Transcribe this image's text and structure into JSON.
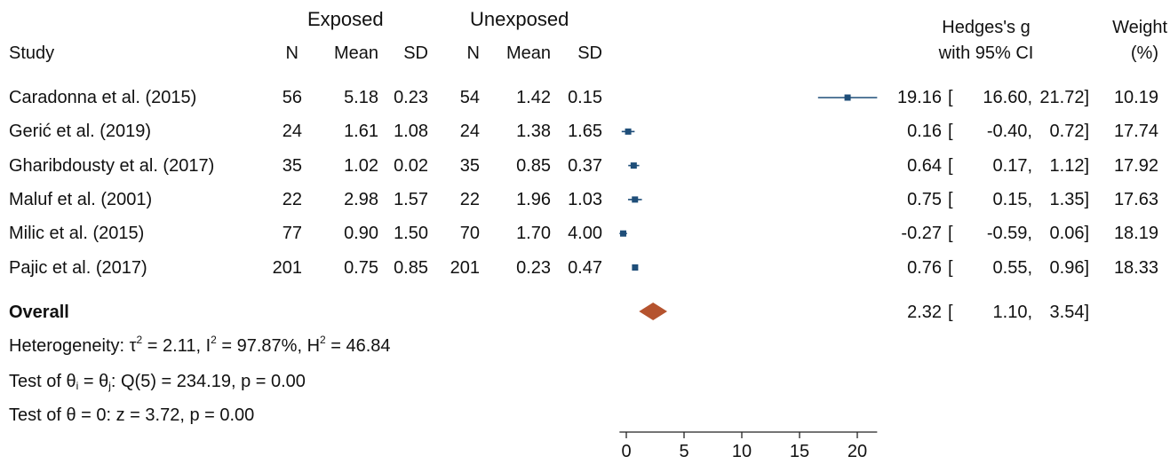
{
  "header": {
    "group1": "Exposed",
    "group2": "Unexposed",
    "study": "Study",
    "n": "N",
    "mean": "Mean",
    "sd": "SD",
    "effect_line1": "Hedges's g",
    "effect_line2": "with 95% CI",
    "weight_line1": "Weight",
    "weight_line2": "(%)"
  },
  "studies": [
    {
      "name": "Caradonna et al. (2015)",
      "n1": "56",
      "mean1": "5.18",
      "sd1": "0.23",
      "n2": "54",
      "mean2": "1.42",
      "sd2": "0.15",
      "g": "19.16",
      "lo": "16.60,",
      "hi": "21.72]",
      "weight": "10.19"
    },
    {
      "name": "Gerić et al. (2019)",
      "n1": "24",
      "mean1": "1.61",
      "sd1": "1.08",
      "n2": "24",
      "mean2": "1.38",
      "sd2": "1.65",
      "g": "0.16",
      "lo": "-0.40,",
      "hi": "0.72]",
      "weight": "17.74"
    },
    {
      "name": "Gharibdousty et al. (2017)",
      "n1": "35",
      "mean1": "1.02",
      "sd1": "0.02",
      "n2": "35",
      "mean2": "0.85",
      "sd2": "0.37",
      "g": "0.64",
      "lo": "0.17,",
      "hi": "1.12]",
      "weight": "17.92"
    },
    {
      "name": "Maluf et al. (2001)",
      "n1": "22",
      "mean1": "2.98",
      "sd1": "1.57",
      "n2": "22",
      "mean2": "1.96",
      "sd2": "1.03",
      "g": "0.75",
      "lo": "0.15,",
      "hi": "1.35]",
      "weight": "17.63"
    },
    {
      "name": "Milic et al. (2015)",
      "n1": "77",
      "mean1": "0.90",
      "sd1": "1.50",
      "n2": "70",
      "mean2": "1.70",
      "sd2": "4.00",
      "g": "-0.27",
      "lo": "-0.59,",
      "hi": "0.06]",
      "weight": "18.19"
    },
    {
      "name": "Pajic et al. (2017)",
      "n1": "201",
      "mean1": "0.75",
      "sd1": "0.85",
      "n2": "201",
      "mean2": "0.23",
      "sd2": "0.47",
      "g": "0.76",
      "lo": "0.55,",
      "hi": "0.96]",
      "weight": "18.33"
    }
  ],
  "overall": {
    "label": "Overall",
    "g": "2.32",
    "lo": "1.10,",
    "hi": "3.54]"
  },
  "footer": {
    "het_prefix": "Heterogeneity: τ",
    "het_sup1": "2",
    "het_mid1": " = 2.11, I",
    "het_sup2": "2",
    "het_mid2": " = 97.87%, H",
    "het_sup3": "2",
    "het_end": " = 46.84",
    "test1_a": "Test of θ",
    "test1_sub1": "i",
    "test1_b": " = θ",
    "test1_sub2": "j",
    "test1_c": ": Q(5) = 234.19, p = 0.00",
    "test2": "Test of θ = 0: z = 3.72, p = 0.00"
  },
  "ci_open": "[",
  "colors": {
    "study_marker": "#1f4e79",
    "overall_marker": "#b5532e",
    "axis": "#222222"
  },
  "chart_data": {
    "type": "forest",
    "studies": [
      {
        "name": "Caradonna et al. (2015)",
        "g": 19.16,
        "lo": 16.6,
        "hi": 21.72,
        "weight": 10.19
      },
      {
        "name": "Gerić et al. (2019)",
        "g": 0.16,
        "lo": -0.4,
        "hi": 0.72,
        "weight": 17.74
      },
      {
        "name": "Gharibdousty et al. (2017)",
        "g": 0.64,
        "lo": 0.17,
        "hi": 1.12,
        "weight": 17.92
      },
      {
        "name": "Maluf et al. (2001)",
        "g": 0.75,
        "lo": 0.15,
        "hi": 1.35,
        "weight": 17.63
      },
      {
        "name": "Milic et al. (2015)",
        "g": -0.27,
        "lo": -0.59,
        "hi": 0.06,
        "weight": 18.19
      },
      {
        "name": "Pajic et al. (2017)",
        "g": 0.76,
        "lo": 0.55,
        "hi": 0.96,
        "weight": 18.33
      }
    ],
    "overall": {
      "g": 2.32,
      "lo": 1.1,
      "hi": 3.54
    },
    "xticks": [
      0,
      5,
      10,
      15,
      20
    ],
    "xlim": [
      -0.59,
      21.72
    ]
  }
}
